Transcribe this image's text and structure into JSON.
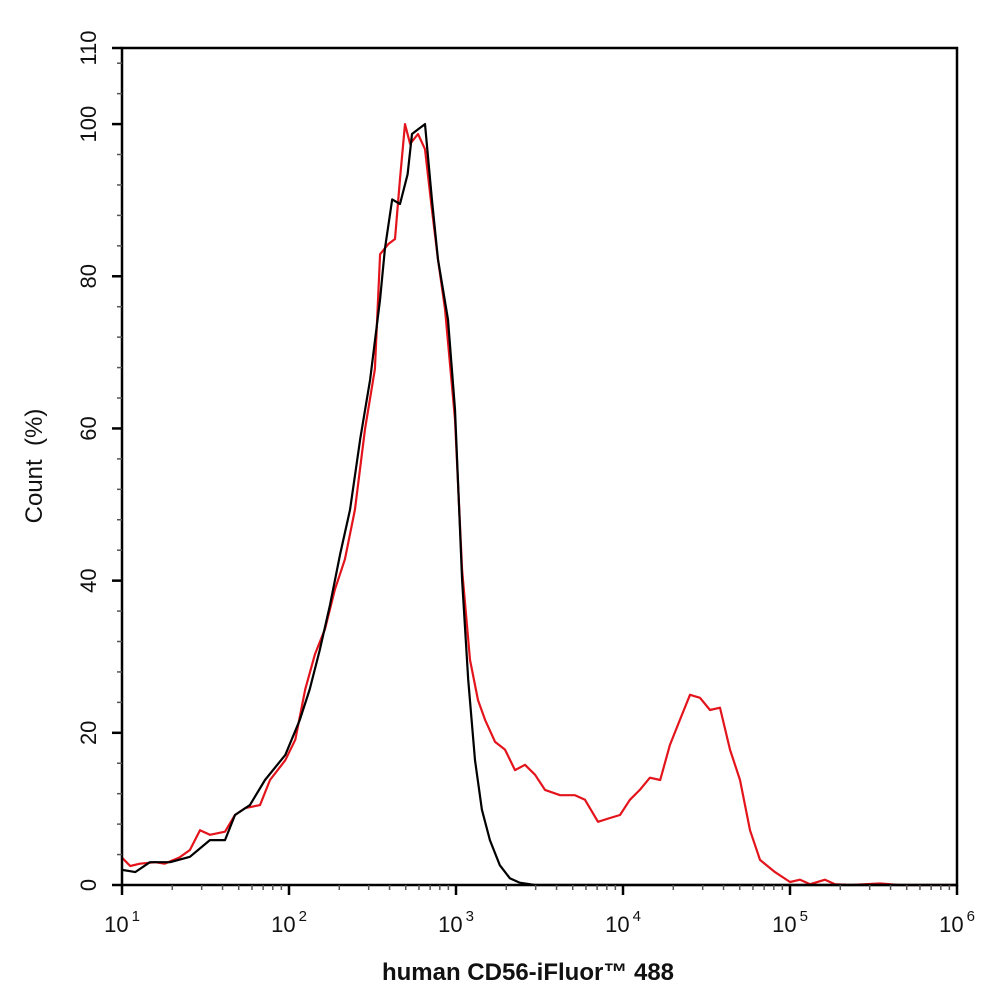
{
  "chart_data": {
    "type": "line",
    "title": "",
    "xlabel": "human CD56-iFluor™ 488",
    "ylabel": "Count  (%)",
    "xscale": "log",
    "xlim": [
      10,
      1000000
    ],
    "ylim": [
      0,
      110
    ],
    "x_ticks": [
      {
        "base": "10",
        "exp": "1"
      },
      {
        "base": "10",
        "exp": "2"
      },
      {
        "base": "10",
        "exp": "3"
      },
      {
        "base": "10",
        "exp": "4"
      },
      {
        "base": "10",
        "exp": "5"
      },
      {
        "base": "10",
        "exp": "6"
      }
    ],
    "y_ticks": [
      "0",
      "20",
      "40",
      "60",
      "80",
      "100",
      "110"
    ],
    "grid": false,
    "series": [
      {
        "color": "#e3141b",
        "x": [
          10,
          11.2,
          12.8,
          15.8,
          18,
          22,
          25.5,
          29.3,
          33.6,
          41.4,
          47.5,
          54.6,
          67,
          77,
          95,
          109,
          125,
          143,
          164,
          188,
          216,
          248,
          285,
          327,
          351,
          392,
          431,
          462,
          495,
          531,
          592,
          652,
          717,
          780,
          859,
          986,
          1087,
          1213,
          1355,
          1493,
          1714,
          1965,
          2255,
          2590,
          2970,
          3410,
          4200,
          5160,
          5920,
          7080,
          8360,
          9600,
          11000,
          12600,
          14500,
          16700,
          19100,
          21900,
          25200,
          28900,
          33200,
          38100,
          43700,
          50200,
          57600,
          66100,
          81300,
          100000,
          115000,
          132000,
          162000,
          186000,
          229000,
          346000,
          456000,
          1000000
        ],
        "y": [
          3.6,
          2.5,
          2.8,
          3.0,
          2.8,
          3.6,
          4.6,
          7.2,
          6.6,
          7.0,
          9.2,
          10.1,
          10.5,
          13.8,
          16.4,
          19.1,
          25.7,
          30.3,
          33.6,
          38.8,
          42.8,
          49.3,
          59.9,
          67.8,
          82.9,
          84.2,
          84.9,
          92.8,
          100,
          97.4,
          98.7,
          96.7,
          88.8,
          82.2,
          75.7,
          61.2,
          41.4,
          29.6,
          24.3,
          21.7,
          18.8,
          17.8,
          15.1,
          15.8,
          14.5,
          12.5,
          11.8,
          11.8,
          11.2,
          8.3,
          8.8,
          9.2,
          11.2,
          12.5,
          14.1,
          13.8,
          18.4,
          21.7,
          25,
          24.6,
          23,
          23.3,
          17.8,
          13.8,
          7.2,
          3.3,
          1.7,
          0.4,
          0.7,
          0.1,
          0.7,
          0.1,
          0,
          0.2,
          0,
          0
        ]
      },
      {
        "color": "#000000",
        "x": [
          10,
          12,
          14.7,
          19.4,
          25.5,
          33.6,
          41.4,
          47.5,
          58.3,
          71.8,
          95,
          116,
          133,
          153,
          176,
          202,
          232,
          267,
          306,
          351,
          375,
          415,
          462,
          513,
          545,
          592,
          652,
          717,
          780,
          895,
          986,
          1087,
          1183,
          1300,
          1430,
          1595,
          1830,
          2100,
          2410,
          2960,
          1000000
        ],
        "y": [
          2.0,
          1.7,
          3,
          3,
          3.7,
          5.9,
          5.9,
          9.2,
          10.5,
          13.8,
          17.1,
          21.7,
          25.7,
          30.9,
          36.8,
          43.4,
          49.3,
          58.6,
          66.4,
          77,
          83.6,
          90.1,
          89.5,
          93.4,
          98.7,
          99.3,
          100,
          90.1,
          82.2,
          74.3,
          62.5,
          40.1,
          27,
          16.4,
          9.9,
          5.9,
          2.6,
          0.9,
          0.3,
          0,
          0
        ]
      }
    ]
  }
}
